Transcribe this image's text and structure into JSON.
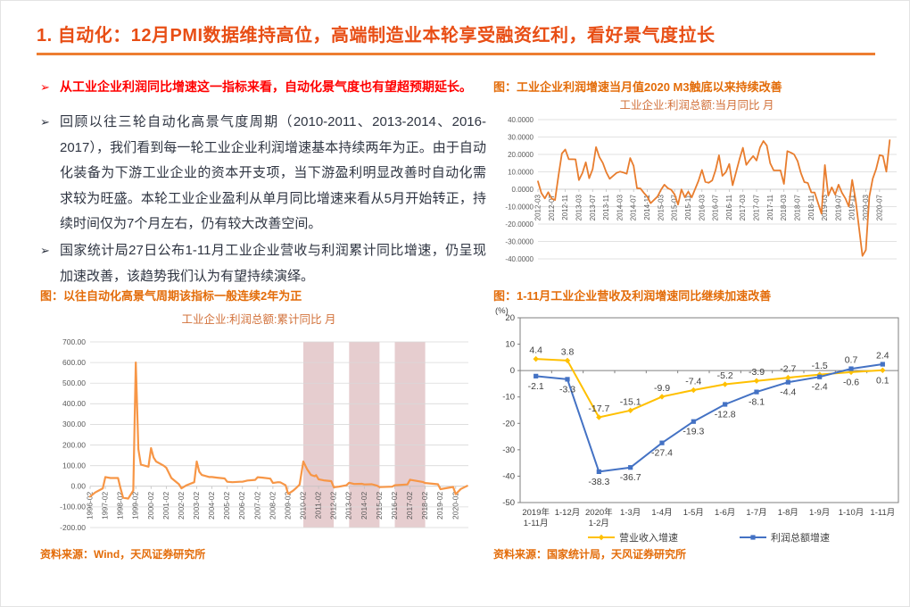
{
  "page": {
    "title": "1. 自动化：12月PMI数据维持高位，高端制造业本轮享受融资红利，看好景气度拉长"
  },
  "bullets": [
    {
      "marker": "➢",
      "text": "从工业企业利润同比增速这一指标来看，自动化景气度也有望超预期延长。"
    },
    {
      "marker": "➢",
      "text": "回顾以往三轮自动化高景气度周期（2010-2011、2013-2014、2016-2017），我们看到每一轮工业企业利润增速基本持续两年为正。由于自动化装备为下游工业企业的资本开支项，当下游盈利明显改善时自动化需求较为旺盛。本轮工业企业盈利从单月同比增速来看从5月开始转正，持续时间仅为7个月左右，仍有较大改善空间。"
    },
    {
      "marker": "➢",
      "text": "国家统计局27日公布1-11月工业企业营收与利润累计同比增速，仍呈现加速改善，该趋势我们认为有望持续演绎。"
    }
  ],
  "sources": {
    "left": "资料来源：Wind，天风证券研究所",
    "right": "资料来源：国家统计局，天风证券研究所"
  },
  "chart_data": [
    {
      "id": "monthly_yoy",
      "type": "line",
      "caption": "图：工业企业利润增速当月值2020 M3触底以来持续改善",
      "title": "工业企业:利润总额:当月同比 月",
      "ylim": [
        -40,
        40
      ],
      "ytick_step": 10,
      "ytick_decimals": 4,
      "grid": true,
      "legend_position": "none",
      "line_color": "#e87d2e",
      "x_range": [
        "2012-03",
        "2020-12"
      ],
      "x_ticks": [
        "2012-03",
        "2012-07",
        "2012-11",
        "2013-03",
        "2013-07",
        "2013-11",
        "2014-03",
        "2014-07",
        "2014-11",
        "2015-03",
        "2015-07",
        "2015-11",
        "2016-03",
        "2016-07",
        "2016-11",
        "2017-03",
        "2017-07",
        "2017-11",
        "2018-03",
        "2018-07",
        "2018-11",
        "2019-03",
        "2019-07",
        "2019-11",
        "2020-03",
        "2020-07"
      ],
      "points": [
        [
          "2012-03",
          4.5
        ],
        [
          "2012-04",
          -2.2
        ],
        [
          "2012-05",
          -5.3
        ],
        [
          "2012-06",
          -1.7
        ],
        [
          "2012-07",
          -5.4
        ],
        [
          "2012-08",
          -6.2
        ],
        [
          "2012-09",
          7.8
        ],
        [
          "2012-10",
          20.5
        ],
        [
          "2012-11",
          22.8
        ],
        [
          "2012-12",
          17.3
        ],
        [
          "2013-02",
          17.2
        ],
        [
          "2013-03",
          5.3
        ],
        [
          "2013-04",
          9.3
        ],
        [
          "2013-05",
          15.5
        ],
        [
          "2013-06",
          6.3
        ],
        [
          "2013-07",
          11.6
        ],
        [
          "2013-08",
          24.2
        ],
        [
          "2013-09",
          18.4
        ],
        [
          "2013-10",
          15.1
        ],
        [
          "2013-11",
          9.7
        ],
        [
          "2013-12",
          6.0
        ],
        [
          "2014-02",
          9.4
        ],
        [
          "2014-03",
          10.1
        ],
        [
          "2014-04",
          9.6
        ],
        [
          "2014-05",
          8.9
        ],
        [
          "2014-06",
          17.9
        ],
        [
          "2014-07",
          13.5
        ],
        [
          "2014-08",
          0.6
        ],
        [
          "2014-09",
          0.4
        ],
        [
          "2014-10",
          -2.1
        ],
        [
          "2014-11",
          -4.2
        ],
        [
          "2014-12",
          -8.0
        ],
        [
          "2015-02",
          -4.2
        ],
        [
          "2015-03",
          -0.4
        ],
        [
          "2015-04",
          2.6
        ],
        [
          "2015-05",
          0.6
        ],
        [
          "2015-06",
          -0.3
        ],
        [
          "2015-07",
          -2.9
        ],
        [
          "2015-08",
          -8.8
        ],
        [
          "2015-09",
          -0.1
        ],
        [
          "2015-10",
          -4.6
        ],
        [
          "2015-11",
          -1.4
        ],
        [
          "2015-12",
          -4.7
        ],
        [
          "2016-02",
          4.8
        ],
        [
          "2016-03",
          11.1
        ],
        [
          "2016-04",
          4.2
        ],
        [
          "2016-05",
          3.7
        ],
        [
          "2016-06",
          5.1
        ],
        [
          "2016-07",
          11.0
        ],
        [
          "2016-08",
          19.5
        ],
        [
          "2016-09",
          7.7
        ],
        [
          "2016-10",
          9.8
        ],
        [
          "2016-11",
          14.5
        ],
        [
          "2016-12",
          2.3
        ],
        [
          "2017-02",
          17.3
        ],
        [
          "2017-03",
          23.8
        ],
        [
          "2017-04",
          14.0
        ],
        [
          "2017-05",
          16.7
        ],
        [
          "2017-06",
          19.1
        ],
        [
          "2017-07",
          16.5
        ],
        [
          "2017-08",
          24.0
        ],
        [
          "2017-09",
          27.7
        ],
        [
          "2017-10",
          25.1
        ],
        [
          "2017-11",
          14.9
        ],
        [
          "2017-12",
          10.8
        ],
        [
          "2018-02",
          10.8
        ],
        [
          "2018-03",
          3.1
        ],
        [
          "2018-04",
          21.9
        ],
        [
          "2018-05",
          21.1
        ],
        [
          "2018-06",
          20.0
        ],
        [
          "2018-07",
          16.2
        ],
        [
          "2018-08",
          9.2
        ],
        [
          "2018-09",
          4.1
        ],
        [
          "2018-10",
          3.6
        ],
        [
          "2018-11",
          -1.8
        ],
        [
          "2018-12",
          -1.9
        ],
        [
          "2019-02",
          -14.0
        ],
        [
          "2019-03",
          13.9
        ],
        [
          "2019-04",
          -3.7
        ],
        [
          "2019-05",
          1.1
        ],
        [
          "2019-06",
          -3.1
        ],
        [
          "2019-07",
          2.6
        ],
        [
          "2019-08",
          -2.0
        ],
        [
          "2019-09",
          -5.3
        ],
        [
          "2019-10",
          -9.9
        ],
        [
          "2019-11",
          5.4
        ],
        [
          "2019-12",
          -6.3
        ],
        [
          "2020-02",
          -38.3
        ],
        [
          "2020-03",
          -34.9
        ],
        [
          "2020-04",
          -4.3
        ],
        [
          "2020-05",
          6.0
        ],
        [
          "2020-06",
          11.5
        ],
        [
          "2020-07",
          19.6
        ],
        [
          "2020-08",
          19.1
        ],
        [
          "2020-09",
          10.1
        ],
        [
          "2020-10",
          28.2
        ]
      ]
    },
    {
      "id": "cumulative_yoy",
      "type": "line",
      "caption": "图：以往自动化高景气周期该指标一般连续2年为正",
      "title": "工业企业:利润总额:累计同比 月",
      "ylim": [
        -200,
        700
      ],
      "ytick_step": 100,
      "ytick_decimals": 2,
      "grid": true,
      "legend_position": "none",
      "line_color": "#f79646",
      "band_color": "rgba(166,77,82,0.28)",
      "bands": [
        [
          "2010-02",
          "2012-02"
        ],
        [
          "2013-02",
          "2015-02"
        ],
        [
          "2016-02",
          "2018-02"
        ]
      ],
      "x_range": [
        "1996-02",
        "2020-12"
      ],
      "x_ticks": [
        "1996-02",
        "1997-02",
        "1998-02",
        "1999-02",
        "2000-02",
        "2001-02",
        "2002-02",
        "2003-02",
        "2004-02",
        "2005-02",
        "2006-02",
        "2007-02",
        "2008-02",
        "2009-02",
        "2010-02",
        "2011-02",
        "2012-02",
        "2013-02",
        "2014-02",
        "2015-02",
        "2016-02",
        "2017-02",
        "2018-02",
        "2019-02",
        "2020-02"
      ],
      "points": [
        [
          "1996-02",
          -50
        ],
        [
          "1996-06",
          -30
        ],
        [
          "1996-12",
          -10
        ],
        [
          "1997-02",
          45
        ],
        [
          "1997-06",
          40
        ],
        [
          "1997-12",
          40
        ],
        [
          "1998-02",
          -10
        ],
        [
          "1998-04",
          -55
        ],
        [
          "1998-08",
          -60
        ],
        [
          "1998-12",
          -20
        ],
        [
          "1999-02",
          600
        ],
        [
          "1999-04",
          180
        ],
        [
          "1999-06",
          105
        ],
        [
          "1999-12",
          95
        ],
        [
          "2000-02",
          185
        ],
        [
          "2000-04",
          140
        ],
        [
          "2000-06",
          120
        ],
        [
          "2000-12",
          100
        ],
        [
          "2001-02",
          90
        ],
        [
          "2001-06",
          40
        ],
        [
          "2001-12",
          10
        ],
        [
          "2002-02",
          -10
        ],
        [
          "2002-06",
          5
        ],
        [
          "2002-12",
          20
        ],
        [
          "2003-02",
          120
        ],
        [
          "2003-04",
          70
        ],
        [
          "2003-06",
          55
        ],
        [
          "2003-12",
          45
        ],
        [
          "2004-02",
          45
        ],
        [
          "2004-06",
          42
        ],
        [
          "2004-12",
          38
        ],
        [
          "2005-02",
          22
        ],
        [
          "2005-06",
          20
        ],
        [
          "2005-12",
          22
        ],
        [
          "2006-02",
          22
        ],
        [
          "2006-06",
          28
        ],
        [
          "2006-12",
          31
        ],
        [
          "2007-02",
          44
        ],
        [
          "2007-06",
          42
        ],
        [
          "2007-12",
          37
        ],
        [
          "2008-02",
          16
        ],
        [
          "2008-06",
          20
        ],
        [
          "2008-08",
          19
        ],
        [
          "2008-12",
          5
        ],
        [
          "2009-02",
          -37
        ],
        [
          "2009-06",
          -21
        ],
        [
          "2009-08",
          -10
        ],
        [
          "2009-11",
          8
        ],
        [
          "2010-02",
          120
        ],
        [
          "2010-05",
          82
        ],
        [
          "2010-08",
          55
        ],
        [
          "2010-11",
          49
        ],
        [
          "2010-12",
          54
        ],
        [
          "2011-02",
          34
        ],
        [
          "2011-06",
          29
        ],
        [
          "2011-12",
          25
        ],
        [
          "2012-02",
          -5
        ],
        [
          "2012-06",
          -2
        ],
        [
          "2012-12",
          5
        ],
        [
          "2013-02",
          17
        ],
        [
          "2013-06",
          11
        ],
        [
          "2013-12",
          12
        ],
        [
          "2014-02",
          9
        ],
        [
          "2014-08",
          10
        ],
        [
          "2014-12",
          3
        ],
        [
          "2015-02",
          -4
        ],
        [
          "2015-12",
          -2
        ],
        [
          "2016-02",
          5
        ],
        [
          "2016-12",
          9
        ],
        [
          "2017-02",
          32
        ],
        [
          "2017-12",
          21
        ],
        [
          "2018-02",
          16
        ],
        [
          "2018-12",
          10
        ],
        [
          "2019-02",
          -14
        ],
        [
          "2019-12",
          -3
        ],
        [
          "2020-02",
          -38
        ],
        [
          "2020-06",
          -13
        ],
        [
          "2020-11",
          2
        ]
      ]
    },
    {
      "id": "rev_profit",
      "type": "line",
      "caption": "图：1-11月工业企业营收及利润增速同比继续加速改善",
      "unit_label": "(%)",
      "ylim": [
        -50,
        20
      ],
      "ytick_step": 10,
      "grid": false,
      "legend_position": "bottom",
      "categories": [
        "2019年|1-11月",
        "1-12月",
        "2020年|1-2月",
        "1-3月",
        "1-4月",
        "1-5月",
        "1-6月",
        "1-7月",
        "1-8月",
        "1-9月",
        "1-10月",
        "1-11月"
      ],
      "series": [
        {
          "name": "营业收入增速",
          "color": "#ffc000",
          "marker": "diamond",
          "values": [
            4.4,
            3.8,
            -17.7,
            -15.1,
            -9.9,
            -7.4,
            -5.2,
            -3.9,
            -2.7,
            -1.5,
            -0.6,
            0.1
          ],
          "label_side": [
            "a",
            "a",
            "a",
            "a",
            "a",
            "a",
            "a",
            "a",
            "a",
            "a",
            "b",
            "b"
          ]
        },
        {
          "name": "利润总额增速",
          "color": "#4472c4",
          "marker": "square",
          "values": [
            -2.1,
            -3.3,
            -38.3,
            -36.7,
            -27.4,
            -19.3,
            -12.8,
            -8.1,
            -4.4,
            -2.4,
            0.7,
            2.4
          ],
          "label_side": [
            "b",
            "b",
            "b",
            "b",
            "b",
            "b",
            "b",
            "b",
            "b",
            "b",
            "a",
            "a"
          ]
        }
      ]
    }
  ]
}
